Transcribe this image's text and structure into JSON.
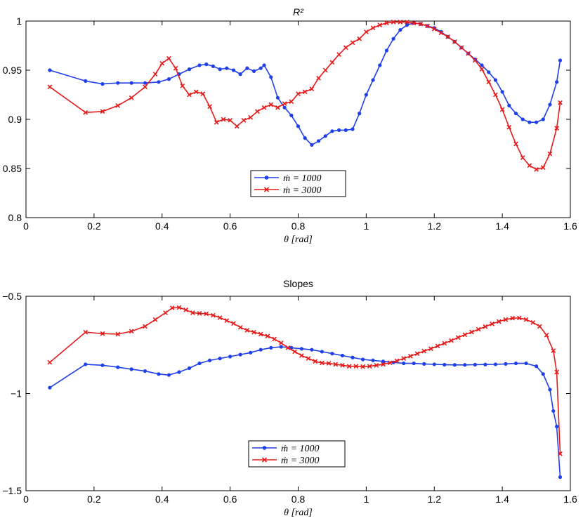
{
  "colors": {
    "blue": "#1f3fe8",
    "red": "#e61a1a"
  },
  "chart_data": [
    {
      "type": "line",
      "title": "R²",
      "xlabel": "θ [rad]",
      "ylabel": "",
      "xlim": [
        0,
        1.6
      ],
      "ylim": [
        0.8,
        1.0
      ],
      "xticks": [
        0,
        0.2,
        0.4,
        0.6,
        0.8,
        1,
        1.2,
        1.4,
        1.6
      ],
      "xtick_labels": [
        "0",
        "0.2",
        "0.4",
        "0.6",
        "0.8",
        "1",
        "1.2",
        "1.4",
        "1.6"
      ],
      "yticks": [
        0.8,
        0.85,
        0.9,
        0.95,
        1
      ],
      "ytick_labels": [
        "0.8",
        "0.85",
        "0.9",
        "0.95",
        "1"
      ],
      "grid": false,
      "legend_position": "lower-center",
      "series": [
        {
          "name": "ṁ = 1000",
          "color": "blue",
          "marker": "dot",
          "x": [
            0.07,
            0.175,
            0.225,
            0.27,
            0.31,
            0.35,
            0.39,
            0.42,
            0.45,
            0.48,
            0.51,
            0.53,
            0.55,
            0.57,
            0.59,
            0.61,
            0.63,
            0.65,
            0.67,
            0.69,
            0.7,
            0.72,
            0.74,
            0.76,
            0.78,
            0.8,
            0.82,
            0.84,
            0.86,
            0.88,
            0.9,
            0.92,
            0.94,
            0.96,
            0.98,
            1.0,
            1.02,
            1.04,
            1.06,
            1.08,
            1.1,
            1.12,
            1.14,
            1.16,
            1.18,
            1.2,
            1.22,
            1.24,
            1.26,
            1.28,
            1.3,
            1.32,
            1.34,
            1.36,
            1.38,
            1.4,
            1.42,
            1.44,
            1.46,
            1.48,
            1.5,
            1.52,
            1.54,
            1.56,
            1.57
          ],
          "y": [
            0.95,
            0.939,
            0.936,
            0.937,
            0.937,
            0.937,
            0.938,
            0.941,
            0.946,
            0.951,
            0.955,
            0.956,
            0.954,
            0.951,
            0.952,
            0.95,
            0.946,
            0.952,
            0.949,
            0.952,
            0.955,
            0.943,
            0.922,
            0.912,
            0.904,
            0.893,
            0.881,
            0.874,
            0.878,
            0.883,
            0.888,
            0.889,
            0.889,
            0.89,
            0.906,
            0.925,
            0.94,
            0.955,
            0.97,
            0.982,
            0.991,
            0.996,
            0.998,
            0.997,
            0.995,
            0.993,
            0.989,
            0.984,
            0.979,
            0.973,
            0.967,
            0.961,
            0.955,
            0.948,
            0.94,
            0.928,
            0.914,
            0.906,
            0.9,
            0.897,
            0.897,
            0.9,
            0.915,
            0.938,
            0.96
          ]
        },
        {
          "name": "ṁ = 3000",
          "color": "red",
          "marker": "x",
          "x": [
            0.07,
            0.175,
            0.225,
            0.27,
            0.31,
            0.35,
            0.38,
            0.4,
            0.42,
            0.44,
            0.46,
            0.48,
            0.5,
            0.52,
            0.54,
            0.56,
            0.58,
            0.6,
            0.62,
            0.64,
            0.66,
            0.68,
            0.7,
            0.72,
            0.74,
            0.76,
            0.78,
            0.8,
            0.82,
            0.84,
            0.86,
            0.88,
            0.9,
            0.92,
            0.94,
            0.96,
            0.98,
            1.0,
            1.02,
            1.04,
            1.06,
            1.08,
            1.1,
            1.12,
            1.14,
            1.16,
            1.18,
            1.2,
            1.22,
            1.24,
            1.26,
            1.28,
            1.3,
            1.32,
            1.34,
            1.36,
            1.38,
            1.4,
            1.42,
            1.44,
            1.46,
            1.48,
            1.5,
            1.52,
            1.54,
            1.56,
            1.57
          ],
          "y": [
            0.933,
            0.907,
            0.908,
            0.914,
            0.922,
            0.933,
            0.946,
            0.957,
            0.962,
            0.952,
            0.934,
            0.925,
            0.928,
            0.926,
            0.913,
            0.897,
            0.9,
            0.899,
            0.893,
            0.899,
            0.902,
            0.908,
            0.912,
            0.915,
            0.912,
            0.916,
            0.918,
            0.926,
            0.928,
            0.931,
            0.942,
            0.95,
            0.958,
            0.966,
            0.973,
            0.978,
            0.982,
            0.989,
            0.993,
            0.996,
            0.998,
            0.999,
            0.999,
            0.999,
            0.998,
            0.997,
            0.995,
            0.992,
            0.988,
            0.984,
            0.979,
            0.973,
            0.967,
            0.96,
            0.951,
            0.938,
            0.925,
            0.91,
            0.892,
            0.875,
            0.861,
            0.853,
            0.849,
            0.851,
            0.865,
            0.891,
            0.917
          ]
        }
      ]
    },
    {
      "type": "line",
      "title": "Slopes",
      "xlabel": "θ [rad]",
      "ylabel": "",
      "xlim": [
        0,
        1.6
      ],
      "ylim": [
        -1.5,
        -0.5
      ],
      "xticks": [
        0,
        0.2,
        0.4,
        0.6,
        0.8,
        1,
        1.2,
        1.4,
        1.6
      ],
      "xtick_labels": [
        "0",
        "0.2",
        "0.4",
        "0.6",
        "0.8",
        "1",
        "1.2",
        "1.4",
        "1.6"
      ],
      "yticks": [
        -1.5,
        -1,
        -0.5
      ],
      "ytick_labels": [
        "−1.5",
        "−1",
        "−0.5"
      ],
      "grid": false,
      "legend_position": "lower-center",
      "series": [
        {
          "name": "ṁ = 1000",
          "color": "blue",
          "marker": "dot",
          "x": [
            0.07,
            0.175,
            0.225,
            0.27,
            0.31,
            0.35,
            0.39,
            0.42,
            0.45,
            0.48,
            0.51,
            0.54,
            0.57,
            0.6,
            0.63,
            0.66,
            0.69,
            0.72,
            0.75,
            0.78,
            0.81,
            0.84,
            0.87,
            0.9,
            0.93,
            0.96,
            0.99,
            1.02,
            1.05,
            1.08,
            1.11,
            1.14,
            1.17,
            1.2,
            1.23,
            1.26,
            1.29,
            1.32,
            1.35,
            1.38,
            1.41,
            1.44,
            1.47,
            1.5,
            1.52,
            1.54,
            1.55,
            1.56,
            1.57
          ],
          "y": [
            -0.97,
            -0.85,
            -0.855,
            -0.865,
            -0.875,
            -0.885,
            -0.9,
            -0.905,
            -0.89,
            -0.87,
            -0.845,
            -0.83,
            -0.82,
            -0.81,
            -0.8,
            -0.79,
            -0.775,
            -0.765,
            -0.76,
            -0.765,
            -0.77,
            -0.775,
            -0.785,
            -0.795,
            -0.805,
            -0.815,
            -0.825,
            -0.83,
            -0.835,
            -0.84,
            -0.845,
            -0.845,
            -0.848,
            -0.85,
            -0.852,
            -0.853,
            -0.853,
            -0.852,
            -0.851,
            -0.85,
            -0.848,
            -0.845,
            -0.845,
            -0.86,
            -0.9,
            -0.98,
            -1.09,
            -1.17,
            -1.43
          ]
        },
        {
          "name": "ṁ = 3000",
          "color": "red",
          "marker": "x",
          "x": [
            0.07,
            0.175,
            0.225,
            0.27,
            0.31,
            0.35,
            0.38,
            0.41,
            0.43,
            0.45,
            0.47,
            0.49,
            0.51,
            0.53,
            0.55,
            0.57,
            0.59,
            0.61,
            0.63,
            0.65,
            0.67,
            0.69,
            0.71,
            0.73,
            0.75,
            0.77,
            0.79,
            0.81,
            0.83,
            0.85,
            0.87,
            0.89,
            0.91,
            0.93,
            0.95,
            0.97,
            0.99,
            1.01,
            1.03,
            1.05,
            1.07,
            1.09,
            1.11,
            1.13,
            1.15,
            1.17,
            1.19,
            1.21,
            1.23,
            1.25,
            1.27,
            1.29,
            1.31,
            1.33,
            1.35,
            1.37,
            1.39,
            1.41,
            1.43,
            1.45,
            1.47,
            1.49,
            1.51,
            1.53,
            1.55,
            1.56,
            1.57
          ],
          "y": [
            -0.84,
            -0.685,
            -0.692,
            -0.695,
            -0.68,
            -0.655,
            -0.62,
            -0.585,
            -0.56,
            -0.558,
            -0.57,
            -0.585,
            -0.588,
            -0.59,
            -0.598,
            -0.61,
            -0.625,
            -0.64,
            -0.66,
            -0.675,
            -0.685,
            -0.695,
            -0.705,
            -0.72,
            -0.74,
            -0.765,
            -0.785,
            -0.805,
            -0.82,
            -0.835,
            -0.843,
            -0.845,
            -0.85,
            -0.855,
            -0.86,
            -0.86,
            -0.862,
            -0.86,
            -0.855,
            -0.85,
            -0.842,
            -0.832,
            -0.82,
            -0.808,
            -0.795,
            -0.782,
            -0.77,
            -0.756,
            -0.742,
            -0.728,
            -0.712,
            -0.698,
            -0.684,
            -0.67,
            -0.656,
            -0.642,
            -0.63,
            -0.62,
            -0.613,
            -0.612,
            -0.62,
            -0.635,
            -0.655,
            -0.7,
            -0.78,
            -0.89,
            -1.31
          ]
        }
      ]
    }
  ]
}
